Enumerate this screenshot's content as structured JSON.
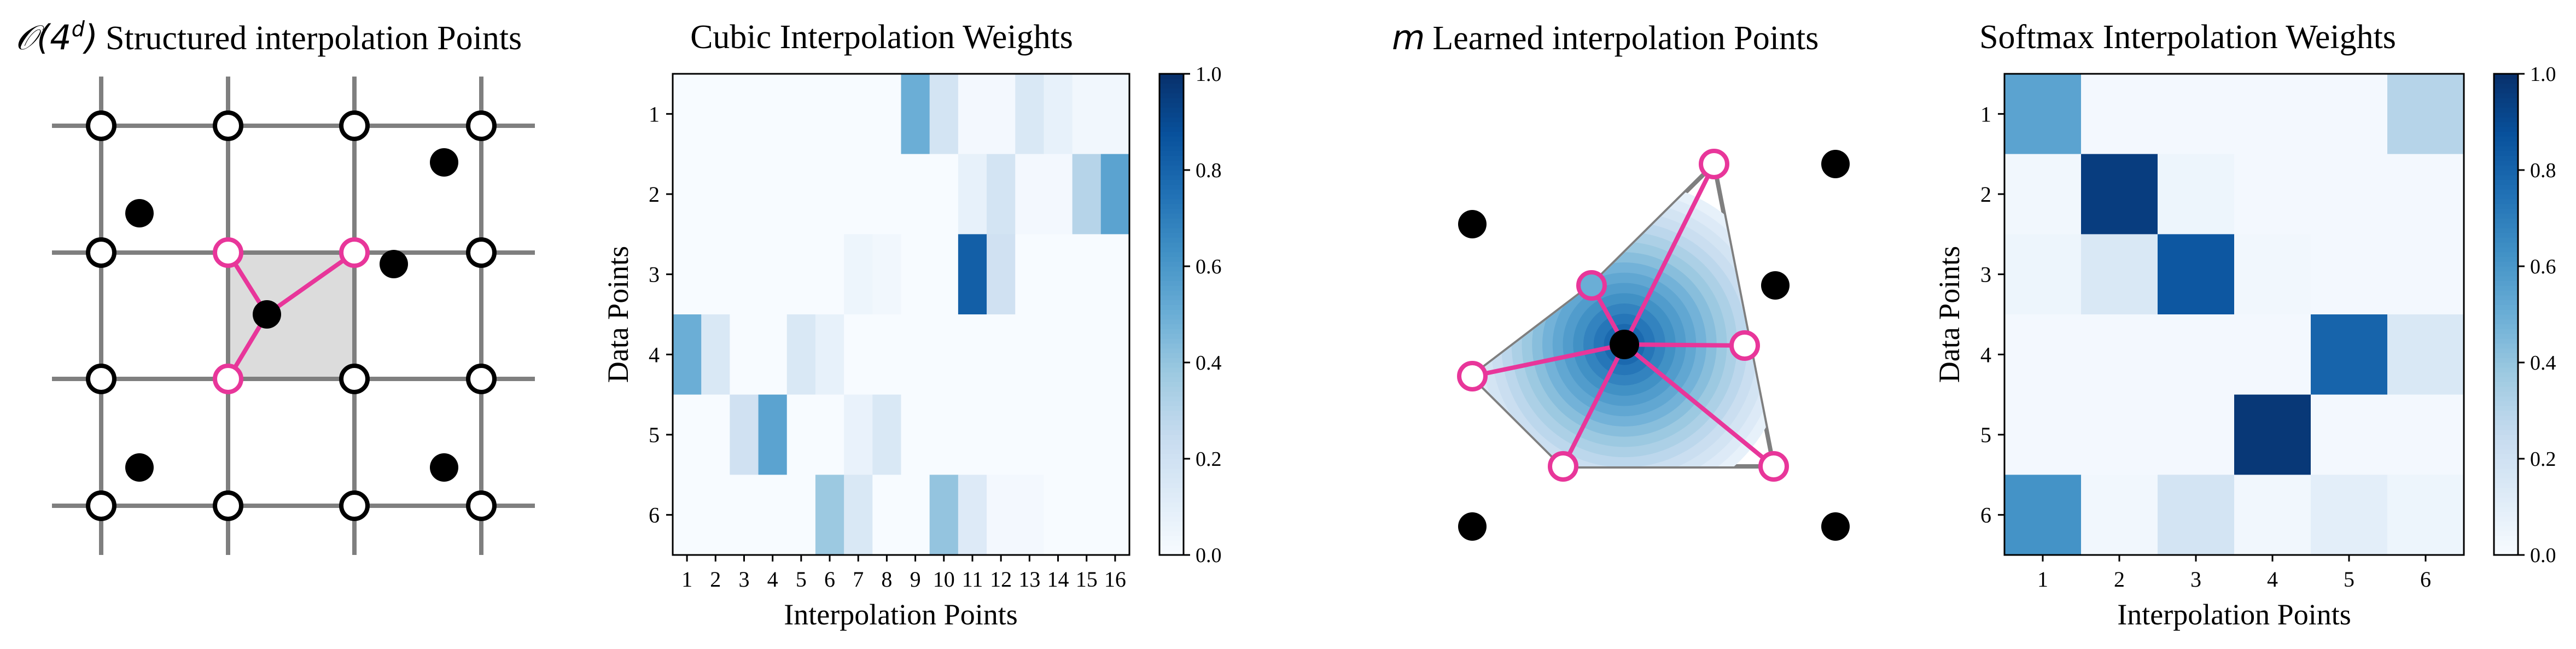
{
  "panels": {
    "structured": {
      "title_math": "𝒪(4",
      "title_sup": "d",
      "title_math_close": ")",
      "title_text": "Structured interpolation Points"
    },
    "cubic": {
      "title": "Cubic Interpolation Weights",
      "xlabel": "Interpolation Points",
      "ylabel": "Data Points"
    },
    "learned": {
      "title_math": "m",
      "title_text": "Learned interpolation Points"
    },
    "softmax": {
      "title": "Softmax Interpolation Weights",
      "xlabel": "Interpolation Points",
      "ylabel": "Data Points"
    }
  },
  "colors": {
    "pink": "#e8369a",
    "grid": "#7f7f7f",
    "cell": "#dcdcdc",
    "point": "#000000"
  },
  "chart_data": [
    {
      "type": "heatmap",
      "title": "Cubic Interpolation Weights",
      "xlabel": "Interpolation Points",
      "ylabel": "Data Points",
      "x_ticks": [
        "1",
        "2",
        "3",
        "4",
        "5",
        "6",
        "7",
        "8",
        "9",
        "10",
        "11",
        "12",
        "13",
        "14",
        "15",
        "16"
      ],
      "y_ticks": [
        "1",
        "2",
        "3",
        "4",
        "5",
        "6"
      ],
      "colorbar": {
        "min": 0.0,
        "max": 1.0,
        "ticks": [
          "0.0",
          "0.2",
          "0.4",
          "0.6",
          "0.8",
          "1.0"
        ]
      },
      "values": [
        [
          0,
          0,
          0,
          0,
          0,
          0,
          0,
          0,
          0.5,
          0.18,
          0.02,
          0.02,
          0.15,
          0.08,
          0.03,
          0.03
        ],
        [
          0,
          0,
          0,
          0,
          0,
          0,
          0,
          0,
          0,
          0,
          0.08,
          0.18,
          0.02,
          0.02,
          0.3,
          0.55
        ],
        [
          0,
          0,
          0,
          0,
          0,
          0,
          0.05,
          0.03,
          0,
          0,
          0.82,
          0.2,
          0,
          0,
          0,
          0
        ],
        [
          0.5,
          0.15,
          0,
          0,
          0.15,
          0.08,
          0,
          0,
          0,
          0,
          0,
          0,
          0,
          0,
          0,
          0
        ],
        [
          0,
          0,
          0.2,
          0.55,
          0,
          0,
          0.07,
          0.15,
          0,
          0,
          0,
          0,
          0,
          0,
          0,
          0
        ],
        [
          0,
          0,
          0,
          0,
          0,
          0.38,
          0.15,
          0,
          0,
          0.4,
          0.13,
          0.02,
          0.02,
          0,
          0,
          0
        ]
      ]
    },
    {
      "type": "heatmap",
      "title": "Softmax Interpolation Weights",
      "xlabel": "Interpolation Points",
      "ylabel": "Data Points",
      "x_ticks": [
        "1",
        "2",
        "3",
        "4",
        "5",
        "6"
      ],
      "y_ticks": [
        "1",
        "2",
        "3",
        "4",
        "5",
        "6"
      ],
      "colorbar": {
        "min": 0.0,
        "max": 1.0,
        "ticks": [
          "0.0",
          "0.2",
          "0.4",
          "0.6",
          "0.8",
          "1.0"
        ]
      },
      "values": [
        [
          0.55,
          0.02,
          0.02,
          0.02,
          0.02,
          0.3
        ],
        [
          0.03,
          0.95,
          0.05,
          0.02,
          0.02,
          0.02
        ],
        [
          0.05,
          0.15,
          0.85,
          0.03,
          0.02,
          0.02
        ],
        [
          0.02,
          0.02,
          0.02,
          0.02,
          0.8,
          0.15
        ],
        [
          0.02,
          0.02,
          0.02,
          0.97,
          0.02,
          0.02
        ],
        [
          0.62,
          0.03,
          0.18,
          0.03,
          0.1,
          0.05
        ]
      ]
    }
  ]
}
